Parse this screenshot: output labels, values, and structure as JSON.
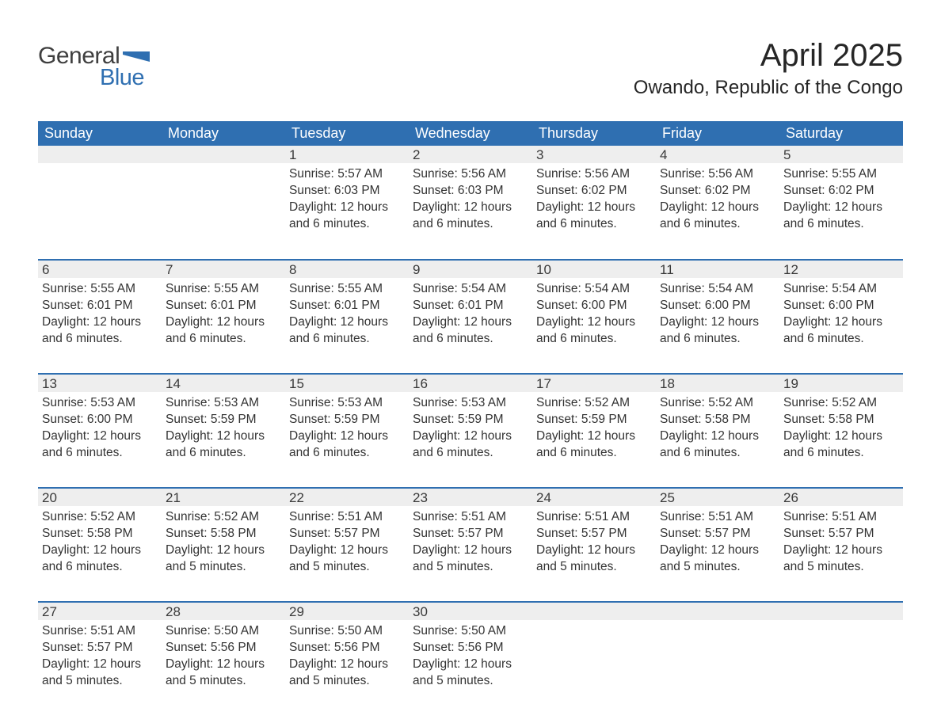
{
  "brand": {
    "word1": "General",
    "word2": "Blue",
    "flag_color": "#2f6fb1",
    "word1_color": "#3f3f3f",
    "word2_color": "#2f6fb1"
  },
  "title": "April 2025",
  "location": "Owando, Republic of the Congo",
  "header_color": "#2f6fb1",
  "header_text_color": "#ffffff",
  "day_bg": "#eeeeee",
  "week_border_color": "#2f6fb1",
  "background_color": "#ffffff",
  "text_color": "#2f2f2f",
  "font_family": "Arial",
  "title_fontsize": 40,
  "location_fontsize": 24,
  "header_fontsize": 18,
  "cell_fontsize": 15.5,
  "labels": {
    "sunrise": "Sunrise:",
    "sunset": "Sunset:",
    "daylight": "Daylight:"
  },
  "columns": [
    "Sunday",
    "Monday",
    "Tuesday",
    "Wednesday",
    "Thursday",
    "Friday",
    "Saturday"
  ],
  "weeks": [
    [
      {
        "day": "",
        "sunrise": "",
        "sunset": "",
        "daylight": ""
      },
      {
        "day": "",
        "sunrise": "",
        "sunset": "",
        "daylight": ""
      },
      {
        "day": "1",
        "sunrise": "5:57 AM",
        "sunset": "6:03 PM",
        "daylight": "12 hours and 6 minutes."
      },
      {
        "day": "2",
        "sunrise": "5:56 AM",
        "sunset": "6:03 PM",
        "daylight": "12 hours and 6 minutes."
      },
      {
        "day": "3",
        "sunrise": "5:56 AM",
        "sunset": "6:02 PM",
        "daylight": "12 hours and 6 minutes."
      },
      {
        "day": "4",
        "sunrise": "5:56 AM",
        "sunset": "6:02 PM",
        "daylight": "12 hours and 6 minutes."
      },
      {
        "day": "5",
        "sunrise": "5:55 AM",
        "sunset": "6:02 PM",
        "daylight": "12 hours and 6 minutes."
      }
    ],
    [
      {
        "day": "6",
        "sunrise": "5:55 AM",
        "sunset": "6:01 PM",
        "daylight": "12 hours and 6 minutes."
      },
      {
        "day": "7",
        "sunrise": "5:55 AM",
        "sunset": "6:01 PM",
        "daylight": "12 hours and 6 minutes."
      },
      {
        "day": "8",
        "sunrise": "5:55 AM",
        "sunset": "6:01 PM",
        "daylight": "12 hours and 6 minutes."
      },
      {
        "day": "9",
        "sunrise": "5:54 AM",
        "sunset": "6:01 PM",
        "daylight": "12 hours and 6 minutes."
      },
      {
        "day": "10",
        "sunrise": "5:54 AM",
        "sunset": "6:00 PM",
        "daylight": "12 hours and 6 minutes."
      },
      {
        "day": "11",
        "sunrise": "5:54 AM",
        "sunset": "6:00 PM",
        "daylight": "12 hours and 6 minutes."
      },
      {
        "day": "12",
        "sunrise": "5:54 AM",
        "sunset": "6:00 PM",
        "daylight": "12 hours and 6 minutes."
      }
    ],
    [
      {
        "day": "13",
        "sunrise": "5:53 AM",
        "sunset": "6:00 PM",
        "daylight": "12 hours and 6 minutes."
      },
      {
        "day": "14",
        "sunrise": "5:53 AM",
        "sunset": "5:59 PM",
        "daylight": "12 hours and 6 minutes."
      },
      {
        "day": "15",
        "sunrise": "5:53 AM",
        "sunset": "5:59 PM",
        "daylight": "12 hours and 6 minutes."
      },
      {
        "day": "16",
        "sunrise": "5:53 AM",
        "sunset": "5:59 PM",
        "daylight": "12 hours and 6 minutes."
      },
      {
        "day": "17",
        "sunrise": "5:52 AM",
        "sunset": "5:59 PM",
        "daylight": "12 hours and 6 minutes."
      },
      {
        "day": "18",
        "sunrise": "5:52 AM",
        "sunset": "5:58 PM",
        "daylight": "12 hours and 6 minutes."
      },
      {
        "day": "19",
        "sunrise": "5:52 AM",
        "sunset": "5:58 PM",
        "daylight": "12 hours and 6 minutes."
      }
    ],
    [
      {
        "day": "20",
        "sunrise": "5:52 AM",
        "sunset": "5:58 PM",
        "daylight": "12 hours and 6 minutes."
      },
      {
        "day": "21",
        "sunrise": "5:52 AM",
        "sunset": "5:58 PM",
        "daylight": "12 hours and 5 minutes."
      },
      {
        "day": "22",
        "sunrise": "5:51 AM",
        "sunset": "5:57 PM",
        "daylight": "12 hours and 5 minutes."
      },
      {
        "day": "23",
        "sunrise": "5:51 AM",
        "sunset": "5:57 PM",
        "daylight": "12 hours and 5 minutes."
      },
      {
        "day": "24",
        "sunrise": "5:51 AM",
        "sunset": "5:57 PM",
        "daylight": "12 hours and 5 minutes."
      },
      {
        "day": "25",
        "sunrise": "5:51 AM",
        "sunset": "5:57 PM",
        "daylight": "12 hours and 5 minutes."
      },
      {
        "day": "26",
        "sunrise": "5:51 AM",
        "sunset": "5:57 PM",
        "daylight": "12 hours and 5 minutes."
      }
    ],
    [
      {
        "day": "27",
        "sunrise": "5:51 AM",
        "sunset": "5:57 PM",
        "daylight": "12 hours and 5 minutes."
      },
      {
        "day": "28",
        "sunrise": "5:50 AM",
        "sunset": "5:56 PM",
        "daylight": "12 hours and 5 minutes."
      },
      {
        "day": "29",
        "sunrise": "5:50 AM",
        "sunset": "5:56 PM",
        "daylight": "12 hours and 5 minutes."
      },
      {
        "day": "30",
        "sunrise": "5:50 AM",
        "sunset": "5:56 PM",
        "daylight": "12 hours and 5 minutes."
      },
      {
        "day": "",
        "sunrise": "",
        "sunset": "",
        "daylight": ""
      },
      {
        "day": "",
        "sunrise": "",
        "sunset": "",
        "daylight": ""
      },
      {
        "day": "",
        "sunrise": "",
        "sunset": "",
        "daylight": ""
      }
    ]
  ]
}
